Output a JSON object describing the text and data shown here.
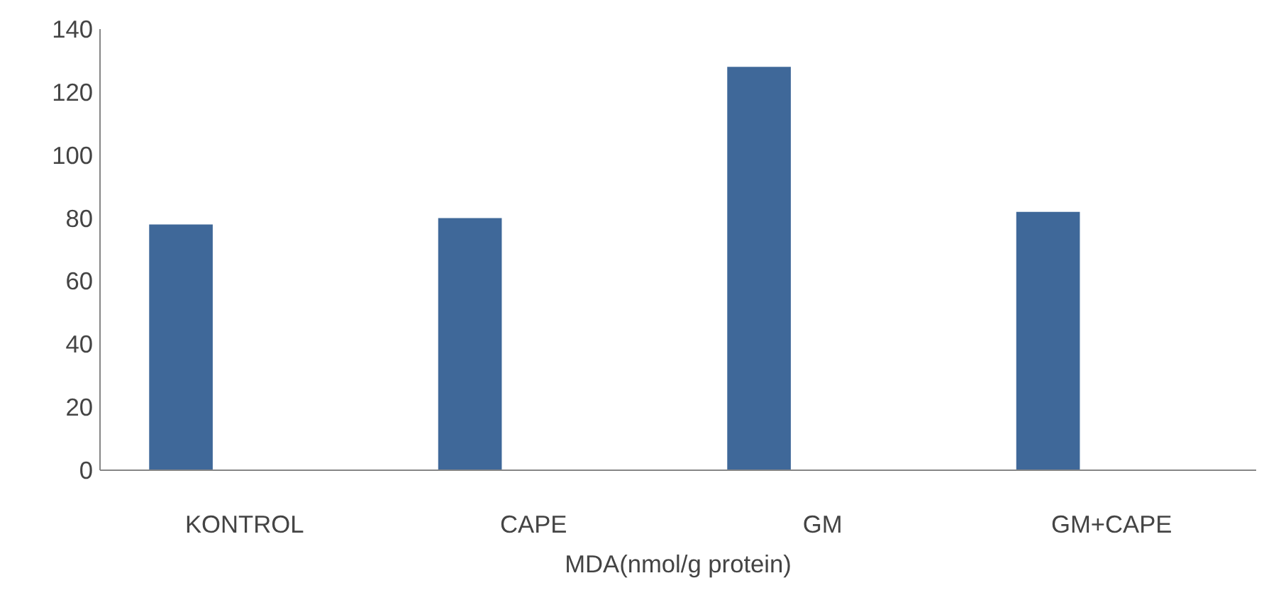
{
  "chart_data": {
    "type": "bar",
    "xlabel": "MDA(nmol/g protein)",
    "categories": [
      "KONTROL",
      "CAPE",
      "GM",
      "GM+CAPE"
    ],
    "values": [
      78,
      80,
      128,
      82
    ],
    "color": "#3f6899",
    "ylim": [
      0,
      140
    ],
    "yticks": [
      0,
      20,
      40,
      60,
      80,
      100,
      120,
      140
    ],
    "grid": false
  }
}
